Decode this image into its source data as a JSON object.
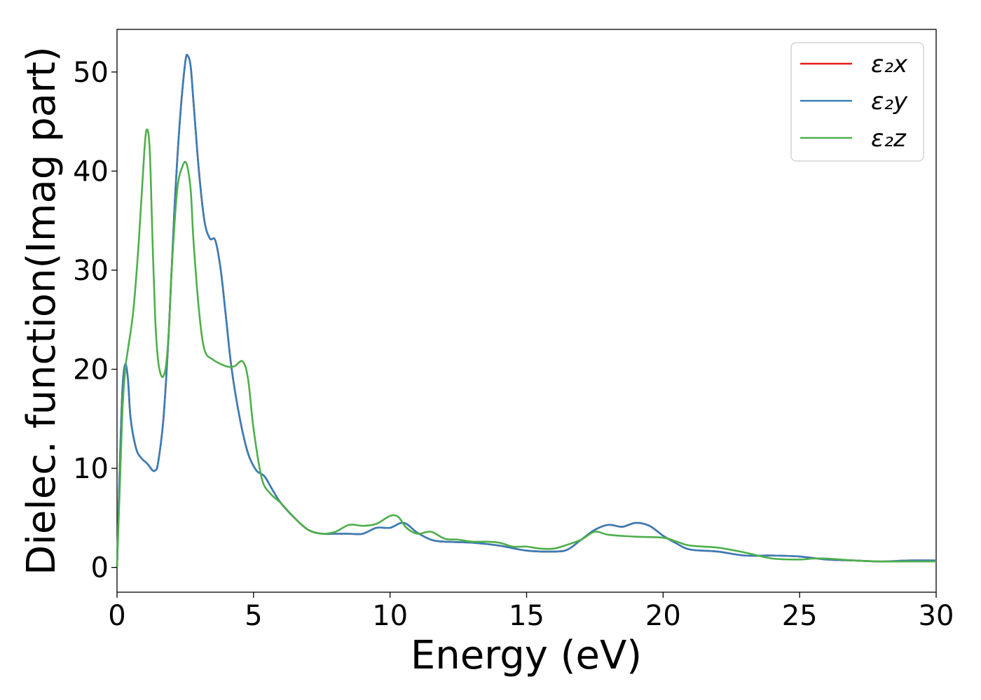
{
  "chart_data": {
    "type": "line",
    "title": "",
    "xlabel": "Energy (eV)",
    "ylabel": "Dielec. function(Imag part)",
    "xlim": [
      0,
      30
    ],
    "ylim": [
      -2.5,
      54.3
    ],
    "xticks": [
      0,
      5,
      10,
      15,
      20,
      25,
      30
    ],
    "yticks": [
      0,
      10,
      20,
      30,
      40,
      50
    ],
    "grid": false,
    "legend_position": "top-right",
    "series": [
      {
        "name": "ε₂x",
        "color": "#e41a1c",
        "x": [
          0,
          0.1,
          0.2,
          0.3,
          0.4,
          0.5,
          0.7,
          0.9,
          1.1,
          1.3,
          1.4,
          1.5,
          1.7,
          1.9,
          2.1,
          2.3,
          2.5,
          2.6,
          2.7,
          2.8,
          3.0,
          3.2,
          3.4,
          3.6,
          3.8,
          4.0,
          4.2,
          4.5,
          4.8,
          5.1,
          5.4,
          5.7,
          6.0,
          6.5,
          7.0,
          7.5,
          8.0,
          8.5,
          9.0,
          9.5,
          10.0,
          10.5,
          11.0,
          11.5,
          12.0,
          13.0,
          14.0,
          15.0,
          16.0,
          16.5,
          17.0,
          17.5,
          18.0,
          18.5,
          19.0,
          19.5,
          20.0,
          20.5,
          21.0,
          22.0,
          23.0,
          24.0,
          25.0,
          26.0,
          27.0,
          28.0,
          29.0,
          30.0
        ],
        "y": [
          0,
          10,
          18,
          20.5,
          19,
          15,
          12,
          11,
          10.5,
          9.8,
          9.8,
          10.5,
          15,
          24,
          36,
          45,
          51,
          51.6,
          50.5,
          47,
          40,
          35,
          33.2,
          33,
          30,
          25,
          20,
          15,
          11.5,
          9.8,
          9.2,
          7.8,
          6.5,
          5,
          3.8,
          3.4,
          3.4,
          3.4,
          3.4,
          4.0,
          4.0,
          4.5,
          3.5,
          2.8,
          2.6,
          2.5,
          2.2,
          1.7,
          1.6,
          1.8,
          2.8,
          3.8,
          4.3,
          4.1,
          4.5,
          4.2,
          3.2,
          2.4,
          1.8,
          1.6,
          1.2,
          1.2,
          1.1,
          0.8,
          0.7,
          0.6,
          0.7,
          0.7
        ]
      },
      {
        "name": "ε₂y",
        "color": "#377eb8",
        "x": [
          0,
          0.1,
          0.2,
          0.3,
          0.4,
          0.5,
          0.7,
          0.9,
          1.1,
          1.3,
          1.4,
          1.5,
          1.7,
          1.9,
          2.1,
          2.3,
          2.5,
          2.6,
          2.7,
          2.8,
          3.0,
          3.2,
          3.4,
          3.6,
          3.8,
          4.0,
          4.2,
          4.5,
          4.8,
          5.1,
          5.4,
          5.7,
          6.0,
          6.5,
          7.0,
          7.5,
          8.0,
          8.5,
          9.0,
          9.5,
          10.0,
          10.5,
          11.0,
          11.5,
          12.0,
          13.0,
          14.0,
          15.0,
          16.0,
          16.5,
          17.0,
          17.5,
          18.0,
          18.5,
          19.0,
          19.5,
          20.0,
          20.5,
          21.0,
          22.0,
          23.0,
          24.0,
          25.0,
          26.0,
          27.0,
          28.0,
          29.0,
          30.0
        ],
        "y": [
          0,
          10,
          18,
          20.5,
          19,
          15,
          12,
          11,
          10.5,
          9.8,
          9.8,
          10.5,
          15,
          24,
          36,
          45,
          51,
          51.6,
          50.5,
          47,
          40,
          35,
          33.2,
          33,
          30,
          25,
          20,
          15,
          11.5,
          9.8,
          9.2,
          7.8,
          6.5,
          5,
          3.8,
          3.4,
          3.4,
          3.4,
          3.4,
          4.0,
          4.0,
          4.5,
          3.5,
          2.8,
          2.6,
          2.5,
          2.2,
          1.7,
          1.6,
          1.8,
          2.8,
          3.8,
          4.3,
          4.1,
          4.5,
          4.2,
          3.2,
          2.4,
          1.8,
          1.6,
          1.2,
          1.2,
          1.1,
          0.8,
          0.7,
          0.6,
          0.7,
          0.7
        ]
      },
      {
        "name": "ε₂z",
        "color": "#4daf4a",
        "x": [
          0,
          0.1,
          0.2,
          0.3,
          0.4,
          0.6,
          0.8,
          1.0,
          1.1,
          1.2,
          1.3,
          1.4,
          1.5,
          1.6,
          1.7,
          1.8,
          1.9,
          2.0,
          2.2,
          2.4,
          2.55,
          2.7,
          2.8,
          3.0,
          3.2,
          3.5,
          4.0,
          4.3,
          4.6,
          4.8,
          5.0,
          5.3,
          5.6,
          6.0,
          6.5,
          7.0,
          7.5,
          8.0,
          8.5,
          9.0,
          9.5,
          10.0,
          10.3,
          10.6,
          11.0,
          11.5,
          12.0,
          12.5,
          13.0,
          13.5,
          14.0,
          14.5,
          15.0,
          15.5,
          16.0,
          16.5,
          17.0,
          17.5,
          18.0,
          19.0,
          20.0,
          20.5,
          21.0,
          22.0,
          23.0,
          24.0,
          25.0,
          25.5,
          26.0,
          27.0,
          28.0,
          29.0,
          30.0
        ],
        "y": [
          0,
          8,
          16,
          20,
          22,
          26,
          33,
          42,
          44.2,
          42,
          33,
          25,
          21,
          19.5,
          19.3,
          20.5,
          24,
          30,
          38,
          40.5,
          40.7,
          38,
          33,
          26,
          22,
          21,
          20.3,
          20.3,
          20.8,
          19,
          14,
          9,
          7.5,
          6.5,
          5,
          3.8,
          3.4,
          3.6,
          4.3,
          4.2,
          4.4,
          5.2,
          5.1,
          4.0,
          3.4,
          3.6,
          2.9,
          2.8,
          2.6,
          2.6,
          2.5,
          2.1,
          2.1,
          1.9,
          1.9,
          2.3,
          2.8,
          3.6,
          3.3,
          3.1,
          3.0,
          2.6,
          2.2,
          2.0,
          1.5,
          0.9,
          0.8,
          0.9,
          0.9,
          0.7,
          0.6,
          0.6,
          0.6
        ]
      }
    ]
  }
}
